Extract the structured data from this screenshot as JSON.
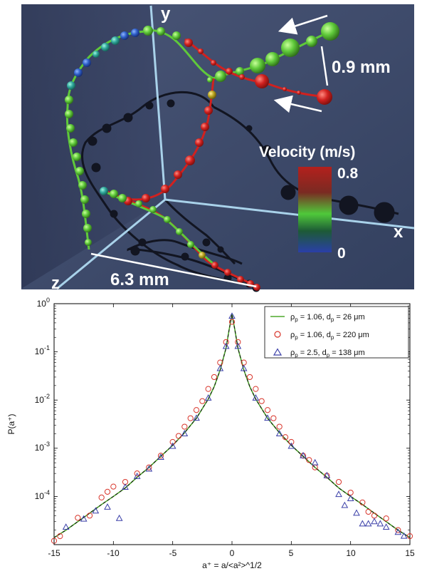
{
  "top_panel": {
    "axis_labels": {
      "x": "x",
      "y": "y",
      "z": "z"
    },
    "scale_vertical": "0.9 mm",
    "scale_horizontal": "6.3 mm",
    "colorbar": {
      "title": "Velocity (m/s)",
      "max_label": "0.8",
      "min_label": "0",
      "max": 0.8,
      "min": 0
    },
    "colors": {
      "background": "#3e4a6b",
      "axis_line": "#a9d2ea",
      "shadow": "#121521",
      "slow": "#2a46b8",
      "mid": "#4fc93a",
      "fast": "#d1211f"
    }
  },
  "chart_data": {
    "type": "line",
    "title": "",
    "xlabel": "a⁺ = a/<a²>^1/2",
    "ylabel": "P(a⁺)",
    "xlim": [
      -15,
      15
    ],
    "ylim": [
      1e-05,
      1
    ],
    "yscale": "log",
    "x_ticks": [
      -15,
      -10,
      -5,
      0,
      5,
      10,
      15
    ],
    "y_ticks": [
      {
        "base": "10",
        "exp": "0",
        "value": 1
      },
      {
        "base": "10",
        "exp": "-1",
        "value": 0.1
      },
      {
        "base": "10",
        "exp": "-2",
        "value": 0.01
      },
      {
        "base": "10",
        "exp": "-3",
        "value": 0.001
      },
      {
        "base": "10",
        "exp": "-4",
        "value": 0.0001
      }
    ],
    "legend_position": "top-right",
    "series": [
      {
        "name": "ρp = 1.06, dp = 26 μm",
        "name_parts": [
          "ρ",
          "p",
          " = 1.06, d",
          "p",
          " = 26 μm"
        ],
        "kind": "line",
        "color": "#4ea82c",
        "x": [
          -15,
          -14,
          -13,
          -12,
          -11,
          -10,
          -9,
          -8,
          -7,
          -6,
          -5,
          -4,
          -3,
          -2,
          -1.5,
          -1,
          -0.5,
          -0.25,
          0,
          0.25,
          0.5,
          1,
          1.5,
          2,
          3,
          4,
          5,
          6,
          7,
          8,
          9,
          10,
          11,
          12,
          13,
          14,
          15
        ],
        "y": [
          1.4e-05,
          2e-05,
          3e-05,
          4.5e-05,
          6.8e-05,
          0.0001,
          0.00015,
          0.00025,
          0.0004,
          0.00068,
          0.00115,
          0.0021,
          0.0042,
          0.0105,
          0.019,
          0.042,
          0.12,
          0.28,
          0.6,
          0.28,
          0.12,
          0.042,
          0.019,
          0.0105,
          0.0042,
          0.0021,
          0.00115,
          0.00068,
          0.0004,
          0.00025,
          0.00015,
          0.0001,
          6.8e-05,
          4.5e-05,
          3e-05,
          2e-05,
          1.4e-05
        ]
      },
      {
        "name": "ρp = 1.06, dp = 220 μm",
        "name_parts": [
          "ρ",
          "p",
          " = 1.06, d",
          "p",
          " = 220 μm"
        ],
        "kind": "circle",
        "color": "#d8342a",
        "x": [
          -15,
          -14.5,
          -13,
          -12,
          -11,
          -10.5,
          -10,
          -9,
          -8,
          -7,
          -6,
          -5,
          -4.5,
          -4,
          -3.5,
          -3,
          -2.5,
          -2,
          -1.5,
          -1,
          -0.5,
          0,
          0.5,
          1,
          1.5,
          2,
          2.5,
          3,
          3.5,
          4,
          4.5,
          5,
          6,
          6.5,
          7,
          8,
          9,
          10,
          11,
          11.5,
          12,
          13,
          14,
          15
        ],
        "y": [
          1.2e-05,
          1.5e-05,
          3.6e-05,
          4e-05,
          9.5e-05,
          0.000125,
          0.00016,
          0.0002,
          0.0003,
          0.0004,
          0.0007,
          0.00135,
          0.0018,
          0.0028,
          0.0042,
          0.0062,
          0.0095,
          0.017,
          0.03,
          0.06,
          0.16,
          0.42,
          0.16,
          0.06,
          0.03,
          0.017,
          0.0095,
          0.0062,
          0.0042,
          0.0028,
          0.0017,
          0.00135,
          0.0007,
          0.00057,
          0.0004,
          0.00027,
          0.0002,
          0.00012,
          7.5e-05,
          4.8e-05,
          4e-05,
          3.5e-05,
          2e-05,
          1.5e-05
        ]
      },
      {
        "name": "ρp = 2.5, dp = 138 μm",
        "name_parts": [
          "ρ",
          "p",
          " = 2.5, d",
          "p",
          " = 138 μm"
        ],
        "kind": "triangle",
        "color": "#3a3fa8",
        "x": [
          -14,
          -12.5,
          -11.5,
          -10.5,
          -9.5,
          -9,
          -8,
          -7,
          -6,
          -5,
          -4,
          -3,
          -2,
          -1,
          -0.5,
          0,
          0.5,
          1,
          2,
          3,
          4,
          5,
          6,
          7,
          8,
          9,
          9.5,
          10,
          10.5,
          11,
          11.5,
          12,
          12.5,
          13,
          14,
          14.5
        ],
        "y": [
          2.3e-05,
          3.4e-05,
          5e-05,
          6e-05,
          3.5e-05,
          0.000155,
          0.00026,
          0.00037,
          0.00065,
          0.0011,
          0.002,
          0.0042,
          0.011,
          0.045,
          0.13,
          0.55,
          0.13,
          0.045,
          0.011,
          0.0042,
          0.002,
          0.0011,
          0.0007,
          0.0005,
          0.00027,
          0.00011,
          6.5e-05,
          9e-05,
          4.5e-05,
          2.7e-05,
          2.7e-05,
          3e-05,
          2.7e-05,
          2.3e-05,
          1.8e-05,
          1.5e-05
        ]
      }
    ]
  }
}
